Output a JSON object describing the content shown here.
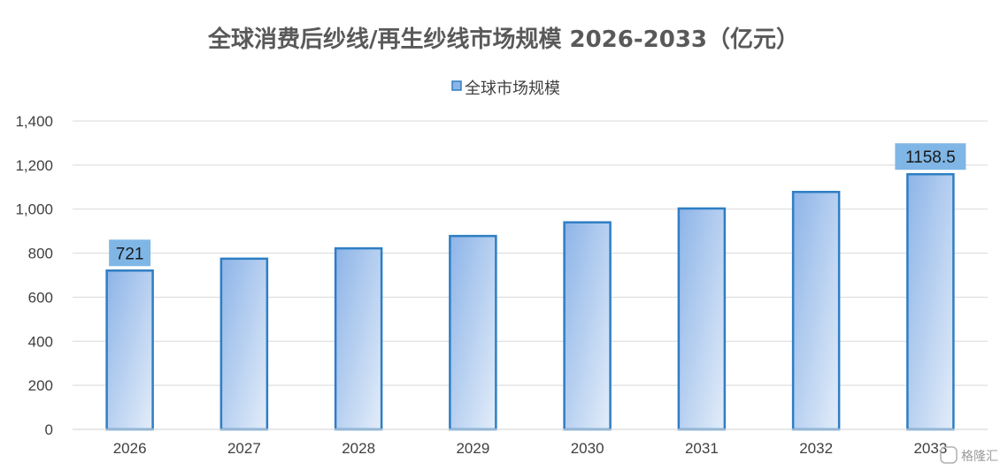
{
  "watermark": "格隆汇",
  "chart_data": {
    "type": "bar",
    "title": "全球消费后纱线/再生纱线市场规模 2026-2033（亿元）",
    "legend_position": "top",
    "categories": [
      "2026",
      "2027",
      "2028",
      "2029",
      "2030",
      "2031",
      "2032",
      "2033"
    ],
    "series": [
      {
        "name": "全球市场规模",
        "values": [
          721,
          775,
          822,
          878,
          940,
          1003,
          1078,
          1158.5
        ],
        "data_labels": [
          "721",
          null,
          null,
          null,
          null,
          null,
          null,
          "1158.5"
        ]
      }
    ],
    "ylim": [
      0,
      1400
    ],
    "yticks": [
      0,
      200,
      400,
      600,
      800,
      1000,
      1200,
      1400
    ],
    "ytick_labels": [
      "0",
      "200",
      "400",
      "600",
      "800",
      "1,000",
      "1,200",
      "1,400"
    ],
    "grid": true,
    "colors": {
      "bar_border": "#2e7ec4",
      "bar_fill_start": "#8db4e8",
      "bar_fill_end": "#e3edf9",
      "label_bg": "#7fb6e6",
      "grid": "#d9d9d9"
    }
  }
}
